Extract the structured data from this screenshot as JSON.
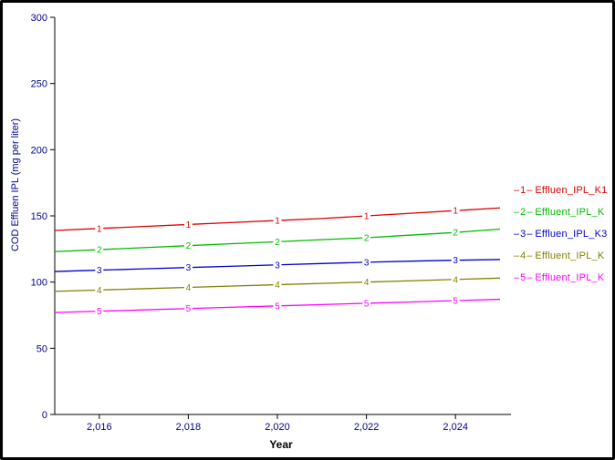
{
  "chart_data": {
    "type": "line",
    "title": "",
    "xlabel": "Year",
    "ylabel": "COD Effluen IPL (mg per liter)",
    "xlim": [
      2015,
      2025
    ],
    "ylim": [
      0,
      300
    ],
    "x": [
      2015,
      2016,
      2017,
      2018,
      2019,
      2020,
      2021,
      2022,
      2023,
      2024,
      2025
    ],
    "x_tick_values": [
      2016,
      2018,
      2020,
      2022,
      2024
    ],
    "x_tick_labels": [
      "2,016",
      "2,018",
      "2,020",
      "2,022",
      "2,024"
    ],
    "y_tick_values": [
      0,
      50,
      100,
      150,
      200,
      250,
      300
    ],
    "legend_position": "right",
    "grid": false,
    "colors": {
      "axis": "#000000",
      "ticks": "#00008b"
    },
    "series": [
      {
        "marker": "1",
        "label": "Effluen_IPL_K1",
        "color": "#dd0000",
        "values": [
          139,
          140.5,
          142,
          143.5,
          145,
          146.5,
          148,
          150,
          152,
          154,
          156
        ]
      },
      {
        "marker": "2",
        "label": "Effluent_IPL_K",
        "color": "#00bb00",
        "values": [
          123,
          124.5,
          126,
          127.5,
          129,
          130.5,
          132,
          133.5,
          135.5,
          137.5,
          140
        ]
      },
      {
        "marker": "3",
        "label": "Effluen_IPL_K3",
        "color": "#0000cc",
        "values": [
          108,
          109,
          110,
          111,
          112,
          113,
          114,
          115,
          115.8,
          116.5,
          117
        ]
      },
      {
        "marker": "4",
        "label": "Effluent_IPL_K",
        "color": "#808000",
        "values": [
          93,
          94,
          95,
          96,
          97,
          98,
          99,
          100,
          101,
          102,
          103
        ]
      },
      {
        "marker": "5",
        "label": "Effluent_IPL_K",
        "color": "#ff00ff",
        "values": [
          77,
          78,
          79,
          80,
          81,
          82,
          83,
          84,
          85,
          86,
          87
        ]
      }
    ]
  }
}
